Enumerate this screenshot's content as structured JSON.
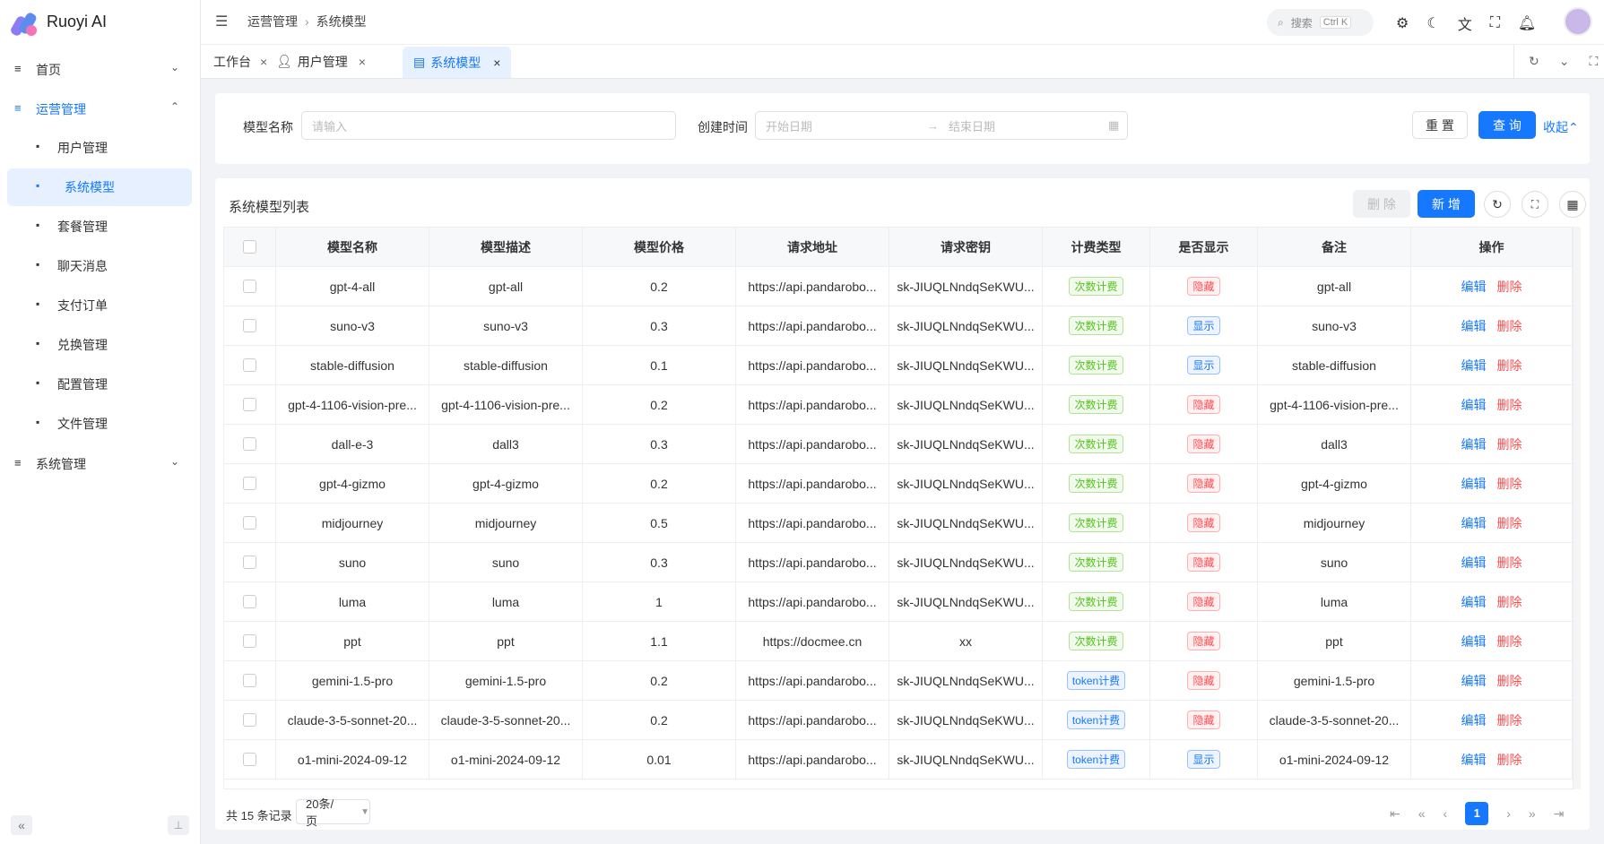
{
  "sidebar": {
    "brand": "Ruoyi AI",
    "menu": [
      {
        "label": "首页"
      },
      {
        "label": "运营管理",
        "children": [
          "用户管理",
          "系统模型",
          "套餐管理",
          "聊天消息",
          "支付订单",
          "兑换管理",
          "配置管理",
          "文件管理"
        ]
      },
      {
        "label": "系统管理"
      }
    ]
  },
  "header": {
    "breadcrumb": [
      "运营管理",
      "系统模型"
    ],
    "search": "搜索",
    "shortcut": "Ctrl K"
  },
  "tabs": [
    "工作台",
    "用户管理",
    "系统模型"
  ],
  "filter": {
    "name_label": "模型名称",
    "name_placeholder": "请输入",
    "time_label": "创建时间",
    "start_placeholder": "开始日期",
    "end_placeholder": "结束日期",
    "reset": "重 置",
    "query": "查 询",
    "collapse": "收起"
  },
  "table": {
    "title": "系统模型列表",
    "delete": "删 除",
    "add": "新 增",
    "columns": [
      "模型名称",
      "模型描述",
      "模型价格",
      "请求地址",
      "请求密钥",
      "计费类型",
      "是否显示",
      "备注",
      "操作"
    ],
    "actions": [
      "编辑",
      "删除"
    ],
    "tag_colors": {
      "次数计费": "#52c41a",
      "token计费": "#1677ff",
      "隐藏": "#ff4d4f",
      "显示": "#1677ff"
    },
    "rows": [
      [
        "gpt-4-all",
        "gpt-all",
        0.2,
        "https://api.pandarobo...",
        "sk-JIUQLNndqSeKWU...",
        "次数计费",
        "隐藏",
        "gpt-all"
      ],
      [
        "suno-v3",
        "suno-v3",
        0.3,
        "https://api.pandarobo...",
        "sk-JIUQLNndqSeKWU...",
        "次数计费",
        "显示",
        "suno-v3"
      ],
      [
        "stable-diffusion",
        "stable-diffusion",
        0.1,
        "https://api.pandarobo...",
        "sk-JIUQLNndqSeKWU...",
        "次数计费",
        "显示",
        "stable-diffusion"
      ],
      [
        "gpt-4-1106-vision-pre...",
        "gpt-4-1106-vision-pre...",
        0.2,
        "https://api.pandarobo...",
        "sk-JIUQLNndqSeKWU...",
        "次数计费",
        "隐藏",
        "gpt-4-1106-vision-pre..."
      ],
      [
        "dall-e-3",
        "dall3",
        0.3,
        "https://api.pandarobo...",
        "sk-JIUQLNndqSeKWU...",
        "次数计费",
        "隐藏",
        "dall3"
      ],
      [
        "gpt-4-gizmo",
        "gpt-4-gizmo",
        0.2,
        "https://api.pandarobo...",
        "sk-JIUQLNndqSeKWU...",
        "次数计费",
        "隐藏",
        "gpt-4-gizmo"
      ],
      [
        "midjourney",
        "midjourney",
        0.5,
        "https://api.pandarobo...",
        "sk-JIUQLNndqSeKWU...",
        "次数计费",
        "隐藏",
        "midjourney"
      ],
      [
        "suno",
        "suno",
        0.3,
        "https://api.pandarobo...",
        "sk-JIUQLNndqSeKWU...",
        "次数计费",
        "隐藏",
        "suno"
      ],
      [
        "luma",
        "luma",
        1,
        "https://api.pandarobo...",
        "sk-JIUQLNndqSeKWU...",
        "次数计费",
        "隐藏",
        "luma"
      ],
      [
        "ppt",
        "ppt",
        1.1,
        "https://docmee.cn",
        "xx",
        "次数计费",
        "隐藏",
        "ppt"
      ],
      [
        "gemini-1.5-pro",
        "gemini-1.5-pro",
        0.2,
        "https://api.pandarobo...",
        "sk-JIUQLNndqSeKWU...",
        "token计费",
        "隐藏",
        "gemini-1.5-pro"
      ],
      [
        "claude-3-5-sonnet-20...",
        "claude-3-5-sonnet-20...",
        0.2,
        "https://api.pandarobo...",
        "sk-JIUQLNndqSeKWU...",
        "token计费",
        "隐藏",
        "claude-3-5-sonnet-20..."
      ],
      [
        "o1-mini-2024-09-12",
        "o1-mini-2024-09-12",
        0.01,
        "https://api.pandarobo...",
        "sk-JIUQLNndqSeKWU...",
        "token计费",
        "显示",
        "o1-mini-2024-09-12"
      ]
    ]
  },
  "pagination": {
    "total": "共 15 条记录",
    "page_size": "20条/页",
    "current": "1"
  }
}
